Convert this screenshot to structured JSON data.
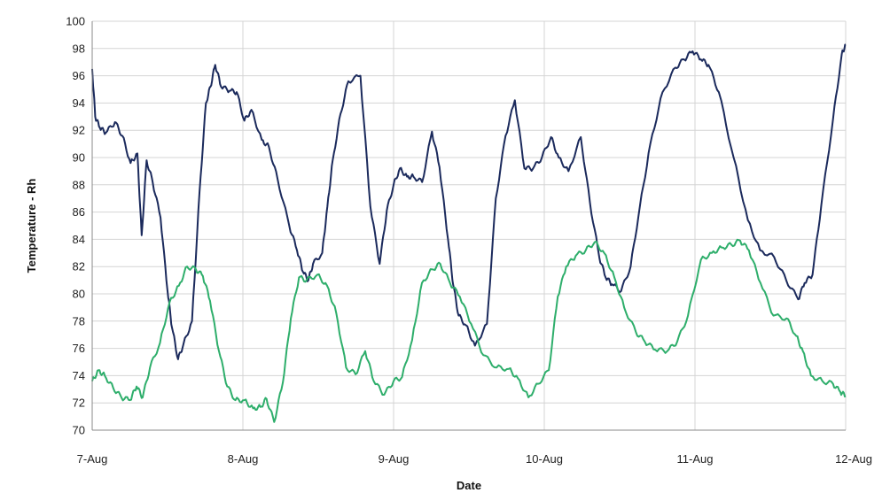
{
  "chart_data": {
    "type": "line",
    "xlabel": "Date",
    "ylabel": "Temperature - Rh",
    "ylim": [
      70,
      100
    ],
    "y_ticks": [
      "70",
      "72",
      "74",
      "76",
      "78",
      "80",
      "82",
      "84",
      "86",
      "88",
      "90",
      "92",
      "94",
      "96",
      "98",
      "100"
    ],
    "x_ticks": [
      "7-Aug",
      "8-Aug",
      "9-Aug",
      "10-Aug",
      "11-Aug",
      "12-Aug"
    ],
    "xlim": [
      "7-Aug 00:00",
      "12-Aug 00:00"
    ],
    "grid": true,
    "legend": "none",
    "series": [
      {
        "color": "#1b2a5c",
        "x": [
          "7-Aug 00:00",
          "7-Aug 00:29",
          "7-Aug 01:12",
          "7-Aug 02:09",
          "7-Aug 03:38",
          "7-Aug 04:48",
          "7-Aug 06:07",
          "7-Aug 07:12",
          "7-Aug 07:53",
          "7-Aug 08:40",
          "7-Aug 09:38",
          "7-Aug 10:53",
          "7-Aug 12:00",
          "7-Aug 12:43",
          "7-Aug 13:41",
          "7-Aug 14:32",
          "7-Aug 15:54",
          "7-Aug 17:06",
          "7-Aug 18:07",
          "7-Aug 18:50",
          "7-Aug 19:36",
          "7-Aug 20:31",
          "7-Aug 21:54",
          "7-Aug 23:01",
          "8-Aug 00:14",
          "8-Aug 01:21",
          "8-Aug 03:00",
          "8-Aug 04:08",
          "8-Aug 05:32",
          "8-Aug 07:23",
          "8-Aug 08:37",
          "8-Aug 09:35",
          "8-Aug 10:26",
          "8-Aug 11:10",
          "8-Aug 12:38",
          "8-Aug 13:27",
          "8-Aug 14:18",
          "8-Aug 15:33",
          "8-Aug 16:48",
          "8-Aug 18:43",
          "8-Aug 20:18",
          "8-Aug 21:47",
          "8-Aug 22:55",
          "9-Aug 00:00",
          "9-Aug 01:00",
          "9-Aug 02:09",
          "9-Aug 03:10",
          "9-Aug 04:33",
          "9-Aug 06:07",
          "9-Aug 07:19",
          "9-Aug 08:40",
          "9-Aug 09:31",
          "9-Aug 10:22",
          "9-Aug 11:31",
          "9-Aug 12:58",
          "9-Aug 14:52",
          "9-Aug 16:17",
          "9-Aug 17:50",
          "9-Aug 19:19",
          "9-Aug 20:50",
          "9-Aug 22:13",
          "9-Aug 23:37",
          "10-Aug 01:04",
          "10-Aug 02:18",
          "10-Aug 03:51",
          "10-Aug 05:49",
          "10-Aug 07:16",
          "10-Aug 08:45",
          "10-Aug 09:46",
          "10-Aug 10:47",
          "10-Aug 12:14",
          "10-Aug 13:45",
          "10-Aug 15:13",
          "10-Aug 16:53",
          "10-Aug 18:50",
          "10-Aug 20:53",
          "10-Aug 22:16",
          "10-Aug 23:37",
          "11-Aug 00:57",
          "11-Aug 02:09",
          "11-Aug 03:48",
          "11-Aug 06:09",
          "11-Aug 08:26",
          "11-Aug 10:22",
          "11-Aug 12:36",
          "11-Aug 14:32",
          "11-Aug 16:26",
          "11-Aug 17:28",
          "11-Aug 18:43",
          "11-Aug 20:07",
          "11-Aug 21:59",
          "11-Aug 23:23",
          "12-Aug 00:00"
        ],
        "values": [
          96.5,
          93.0,
          92.2,
          91.8,
          92.6,
          91.6,
          89.6,
          90.3,
          84.3,
          89.8,
          88.2,
          85.6,
          80.2,
          77.5,
          75.2,
          76.3,
          78.0,
          87.5,
          94.0,
          95.2,
          96.8,
          95.2,
          94.9,
          94.8,
          92.7,
          93.5,
          91.3,
          90.8,
          88.4,
          85.0,
          83.2,
          81.6,
          81.0,
          82.2,
          83.0,
          86.4,
          89.8,
          93.2,
          95.6,
          96.0,
          86.4,
          82.2,
          86.1,
          88.0,
          89.2,
          88.6,
          88.6,
          88.2,
          91.9,
          89.3,
          84.0,
          80.6,
          78.4,
          77.7,
          76.2,
          77.8,
          87.0,
          91.6,
          94.2,
          89.2,
          89.2,
          90.0,
          91.5,
          90.0,
          89.0,
          91.5,
          86.7,
          82.7,
          81.2,
          80.7,
          80.2,
          82.0,
          86.4,
          91.0,
          94.8,
          96.6,
          97.2,
          97.8,
          97.2,
          96.8,
          94.8,
          90.0,
          85.4,
          83.2,
          82.7,
          81.0,
          79.6,
          80.8,
          81.4,
          86.5,
          92.8,
          97.6,
          98.3
        ]
      },
      {
        "color": "#2eae6b",
        "x": [
          "7-Aug 00:00",
          "7-Aug 01:00",
          "7-Aug 02:00",
          "7-Aug 03:21",
          "7-Aug 04:39",
          "7-Aug 06:02",
          "7-Aug 07:04",
          "7-Aug 08:02",
          "7-Aug 09:12",
          "7-Aug 10:48",
          "7-Aug 12:20",
          "7-Aug 13:48",
          "7-Aug 15:07",
          "7-Aug 16:31",
          "7-Aug 17:38",
          "7-Aug 18:46",
          "7-Aug 20:11",
          "7-Aug 21:31",
          "7-Aug 22:49",
          "8-Aug 00:14",
          "8-Aug 01:38",
          "8-Aug 02:48",
          "8-Aug 03:46",
          "8-Aug 04:59",
          "8-Aug 06:22",
          "8-Aug 07:38",
          "8-Aug 08:56",
          "8-Aug 10:09",
          "8-Aug 11:51",
          "8-Aug 13:25",
          "8-Aug 14:52",
          "8-Aug 16:26",
          "8-Aug 17:57",
          "8-Aug 19:29",
          "8-Aug 20:50",
          "8-Aug 22:30",
          "9-Aug 00:00",
          "9-Aug 01:21",
          "9-Aug 02:57",
          "9-Aug 04:31",
          "9-Aug 06:09",
          "9-Aug 07:26",
          "9-Aug 08:59",
          "9-Aug 10:33",
          "9-Aug 12:21",
          "9-Aug 14:18",
          "9-Aug 16:24",
          "9-Aug 18:21",
          "9-Aug 19:48",
          "9-Aug 21:28",
          "9-Aug 23:01",
          "10-Aug 00:43",
          "10-Aug 02:09",
          "10-Aug 03:29",
          "10-Aug 05:01",
          "10-Aug 06:36",
          "10-Aug 08:02",
          "10-Aug 09:33",
          "10-Aug 11:10",
          "10-Aug 12:43",
          "10-Aug 14:35",
          "10-Aug 16:00",
          "10-Aug 17:40",
          "10-Aug 19:36",
          "10-Aug 21:11",
          "10-Aug 22:53",
          "11-Aug 00:57",
          "11-Aug 02:41",
          "11-Aug 04:14",
          "11-Aug 05:49",
          "11-Aug 07:12",
          "11-Aug 08:35",
          "11-Aug 10:26",
          "11-Aug 12:30",
          "11-Aug 14:35",
          "11-Aug 16:09",
          "11-Aug 17:11",
          "11-Aug 18:28",
          "11-Aug 20:18",
          "11-Aug 21:59",
          "11-Aug 23:09",
          "12-Aug 00:00"
        ],
        "values": [
          73.6,
          74.4,
          74.0,
          73.1,
          72.4,
          72.2,
          73.2,
          72.4,
          74.6,
          76.4,
          79.4,
          80.6,
          82.0,
          81.8,
          81.3,
          79.5,
          75.8,
          73.2,
          72.2,
          72.2,
          71.6,
          71.7,
          72.3,
          70.6,
          73.5,
          78.2,
          81.2,
          81.0,
          81.4,
          80.6,
          78.6,
          74.6,
          74.1,
          75.8,
          73.6,
          72.6,
          73.6,
          73.9,
          76.6,
          80.8,
          81.8,
          82.2,
          80.8,
          79.8,
          77.8,
          75.5,
          74.6,
          74.5,
          73.8,
          72.4,
          73.4,
          74.4,
          79.8,
          82.0,
          82.8,
          83.2,
          83.8,
          83.0,
          81.2,
          79.0,
          77.2,
          76.5,
          75.9,
          75.8,
          76.5,
          78.4,
          82.5,
          83.0,
          83.4,
          83.6,
          83.9,
          83.2,
          80.8,
          78.4,
          78.2,
          76.9,
          75.8,
          74.0,
          73.6,
          73.4,
          72.8,
          72.5
        ]
      }
    ]
  }
}
